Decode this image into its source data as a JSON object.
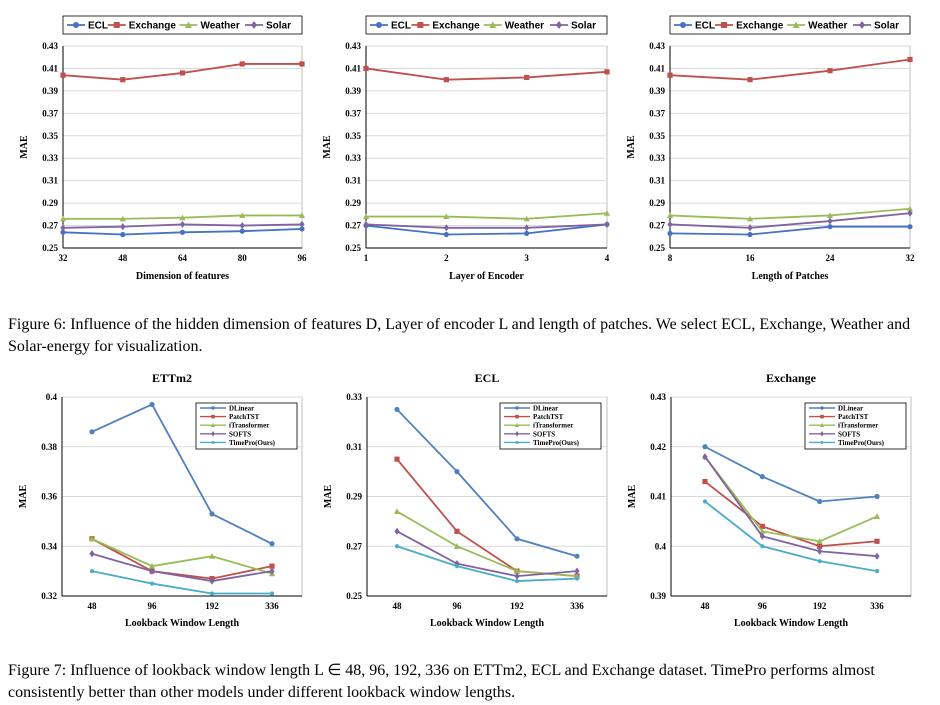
{
  "colors": {
    "ECL": "#4472c4",
    "Exchange": "#c0504d",
    "Weather": "#9bbb59",
    "Solar": "#8064a2",
    "DLinear": "#4f81bd",
    "PatchTST": "#c0504d",
    "iTransformer": "#9bbb59",
    "SOFTS": "#8064a2",
    "TimePro(Ours)": "#4bacc6"
  },
  "figure6": {
    "caption": "Figure 6: Influence of the hidden dimension of features D, Layer of encoder L and length of patches. We select ECL, Exchange, Weather and Solar-energy for visualization."
  },
  "figure7": {
    "caption": "Figure 7: Influence of lookback window length L ∈ 48, 96, 192, 336 on ETTm2, ECL and Exchange dataset. TimePro performs almost consistently better than other models under different lookback window lengths."
  },
  "chart_data": [
    {
      "type": "line",
      "title": "",
      "xlabel": "Dimension of features",
      "ylabel": "MAE",
      "x": [
        "32",
        "48",
        "64",
        "80",
        "96"
      ],
      "ylim": [
        0.25,
        0.43
      ],
      "yticks": [
        "0.25",
        "0.27",
        "0.29",
        "0.31",
        "0.33",
        "0.35",
        "0.37",
        "0.39",
        "0.41",
        "0.43"
      ],
      "legend": "top",
      "series": [
        {
          "name": "ECL",
          "values": [
            0.264,
            0.262,
            0.264,
            0.265,
            0.267
          ]
        },
        {
          "name": "Exchange",
          "values": [
            0.404,
            0.4,
            0.406,
            0.414,
            0.414
          ]
        },
        {
          "name": "Weather",
          "values": [
            0.276,
            0.276,
            0.277,
            0.279,
            0.279
          ]
        },
        {
          "name": "Solar",
          "values": [
            0.268,
            0.269,
            0.271,
            0.27,
            0.271
          ]
        }
      ]
    },
    {
      "type": "line",
      "title": "",
      "xlabel": "Layer of Encoder",
      "ylabel": "MAE",
      "x": [
        "1",
        "2",
        "3",
        "4"
      ],
      "ylim": [
        0.25,
        0.43
      ],
      "yticks": [
        "0.25",
        "0.27",
        "0.29",
        "0.31",
        "0.33",
        "0.35",
        "0.37",
        "0.39",
        "0.41",
        "0.43"
      ],
      "legend": "top",
      "series": [
        {
          "name": "ECL",
          "values": [
            0.27,
            0.262,
            0.263,
            0.271
          ]
        },
        {
          "name": "Exchange",
          "values": [
            0.41,
            0.4,
            0.402,
            0.407
          ]
        },
        {
          "name": "Weather",
          "values": [
            0.278,
            0.278,
            0.276,
            0.281
          ]
        },
        {
          "name": "Solar",
          "values": [
            0.271,
            0.268,
            0.268,
            0.271
          ]
        }
      ]
    },
    {
      "type": "line",
      "title": "",
      "xlabel": "Length of Patches",
      "ylabel": "MAE",
      "x": [
        "8",
        "16",
        "24",
        "32"
      ],
      "ylim": [
        0.25,
        0.43
      ],
      "yticks": [
        "0.25",
        "0.27",
        "0.29",
        "0.31",
        "0.33",
        "0.35",
        "0.37",
        "0.39",
        "0.41",
        "0.43"
      ],
      "legend": "top",
      "series": [
        {
          "name": "ECL",
          "values": [
            0.263,
            0.262,
            0.269,
            0.269
          ]
        },
        {
          "name": "Exchange",
          "values": [
            0.404,
            0.4,
            0.408,
            0.418
          ]
        },
        {
          "name": "Weather",
          "values": [
            0.279,
            0.276,
            0.279,
            0.285
          ]
        },
        {
          "name": "Solar",
          "values": [
            0.271,
            0.268,
            0.274,
            0.281
          ]
        }
      ]
    },
    {
      "type": "line",
      "title": "ETTm2",
      "xlabel": "Lookback Window Length",
      "ylabel": "MAE",
      "x": [
        "48",
        "96",
        "192",
        "336"
      ],
      "ylim": [
        0.32,
        0.4
      ],
      "yticks": [
        "0.32",
        "0.34",
        "0.36",
        "0.38",
        "0.4"
      ],
      "legend": "top-right",
      "series": [
        {
          "name": "DLinear",
          "values": [
            0.386,
            0.397,
            0.353,
            0.341
          ]
        },
        {
          "name": "PatchTST",
          "values": [
            0.343,
            0.33,
            0.327,
            0.332
          ]
        },
        {
          "name": "iTransformer",
          "values": [
            0.343,
            0.332,
            0.336,
            0.329
          ]
        },
        {
          "name": "SOFTS",
          "values": [
            0.337,
            0.33,
            0.326,
            0.33
          ]
        },
        {
          "name": "TimePro(Ours)",
          "values": [
            0.33,
            0.325,
            0.321,
            0.321
          ]
        }
      ]
    },
    {
      "type": "line",
      "title": "ECL",
      "xlabel": "Lookback Window Length",
      "ylabel": "MAE",
      "x": [
        "48",
        "96",
        "192",
        "336"
      ],
      "ylim": [
        0.25,
        0.33
      ],
      "yticks": [
        "0.25",
        "0.27",
        "0.29",
        "0.31",
        "0.33"
      ],
      "legend": "top-right",
      "series": [
        {
          "name": "DLinear",
          "values": [
            0.325,
            0.3,
            0.273,
            0.266
          ]
        },
        {
          "name": "PatchTST",
          "values": [
            0.305,
            0.276,
            0.26,
            0.258
          ]
        },
        {
          "name": "iTransformer",
          "values": [
            0.284,
            0.27,
            0.26,
            0.258
          ]
        },
        {
          "name": "SOFTS",
          "values": [
            0.276,
            0.263,
            0.258,
            0.26
          ]
        },
        {
          "name": "TimePro(Ours)",
          "values": [
            0.27,
            0.262,
            0.256,
            0.257
          ]
        }
      ]
    },
    {
      "type": "line",
      "title": "Exchange",
      "xlabel": "Lookback Window Length",
      "ylabel": "MAE",
      "x": [
        "48",
        "96",
        "192",
        "336"
      ],
      "ylim": [
        0.39,
        0.43
      ],
      "yticks": [
        "0.39",
        "0.4",
        "0.41",
        "0.42",
        "0.43"
      ],
      "legend": "top-right",
      "series": [
        {
          "name": "DLinear",
          "values": [
            0.42,
            0.414,
            0.409,
            0.41
          ]
        },
        {
          "name": "PatchTST",
          "values": [
            0.413,
            0.404,
            0.4,
            0.401
          ]
        },
        {
          "name": "iTransformer",
          "values": [
            0.418,
            0.403,
            0.401,
            0.406
          ]
        },
        {
          "name": "SOFTS",
          "values": [
            0.418,
            0.402,
            0.399,
            0.398
          ]
        },
        {
          "name": "TimePro(Ours)",
          "values": [
            0.409,
            0.4,
            0.397,
            0.395
          ]
        }
      ]
    }
  ]
}
